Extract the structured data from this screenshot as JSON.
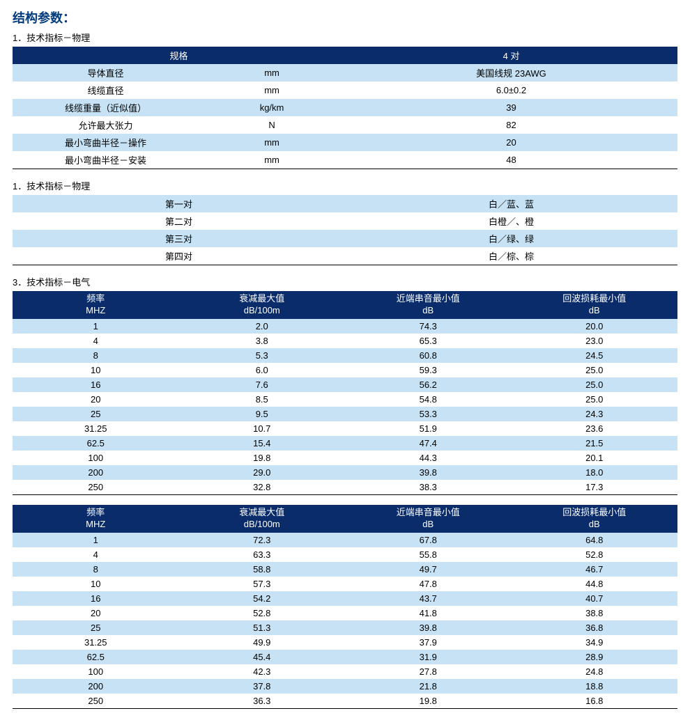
{
  "colors": {
    "header_bg": "#0a2c6b",
    "header_fg": "#ffffff",
    "stripe_blue": "#c6e2f4",
    "stripe_white": "#ffffff",
    "title": "#003b7e",
    "border": "#000000"
  },
  "page_title": "结构参数：",
  "section1": {
    "label": "1．技术指标－物理",
    "header": {
      "spec": "规格",
      "value": "4 对"
    },
    "rows": [
      {
        "spec": "导体直径",
        "unit": "mm",
        "value": "美国线规 23AWG"
      },
      {
        "spec": "线缆直径",
        "unit": "mm",
        "value": "6.0±0.2"
      },
      {
        "spec": "线缆重量（近似值）",
        "unit": "kg/km",
        "value": "39"
      },
      {
        "spec": "允许最大张力",
        "unit": "N",
        "value": "82"
      },
      {
        "spec": "最小弯曲半径－操作",
        "unit": "mm",
        "value": "20"
      },
      {
        "spec": "最小弯曲半径－安装",
        "unit": "mm",
        "value": "48"
      }
    ]
  },
  "section2": {
    "label": "1．技术指标－物理",
    "rows": [
      {
        "pair": "第一对",
        "color": "白／蓝、蓝"
      },
      {
        "pair": "第二对",
        "color": "白橙／、橙"
      },
      {
        "pair": "第三对",
        "color": "白／绿、绿"
      },
      {
        "pair": "第四对",
        "color": "白／棕、棕"
      }
    ]
  },
  "section3": {
    "label": "3．技术指标－电气",
    "header": {
      "c1a": "频率",
      "c1b": "MHZ",
      "c2a": "衰减最大值",
      "c2b": "dB/100m",
      "c3a": "近端串音最小值",
      "c3b": "dB",
      "c4a": "回波损耗最小值",
      "c4b": "dB"
    },
    "rows": [
      {
        "f": "1",
        "a": "2.0",
        "n": "74.3",
        "r": "20.0"
      },
      {
        "f": "4",
        "a": "3.8",
        "n": "65.3",
        "r": "23.0"
      },
      {
        "f": "8",
        "a": "5.3",
        "n": "60.8",
        "r": "24.5"
      },
      {
        "f": "10",
        "a": "6.0",
        "n": "59.3",
        "r": "25.0"
      },
      {
        "f": "16",
        "a": "7.6",
        "n": "56.2",
        "r": "25.0"
      },
      {
        "f": "20",
        "a": "8.5",
        "n": "54.8",
        "r": "25.0"
      },
      {
        "f": "25",
        "a": "9.5",
        "n": "53.3",
        "r": "24.3"
      },
      {
        "f": "31.25",
        "a": "10.7",
        "n": "51.9",
        "r": "23.6"
      },
      {
        "f": "62.5",
        "a": "15.4",
        "n": "47.4",
        "r": "21.5"
      },
      {
        "f": "100",
        "a": "19.8",
        "n": "44.3",
        "r": "20.1"
      },
      {
        "f": "200",
        "a": "29.0",
        "n": "39.8",
        "r": "18.0"
      },
      {
        "f": "250",
        "a": "32.8",
        "n": "38.3",
        "r": "17.3"
      }
    ]
  },
  "section4": {
    "header": {
      "c1a": "频率",
      "c1b": "MHZ",
      "c2a": "衰减最大值",
      "c2b": "dB/100m",
      "c3a": "近端串音最小值",
      "c3b": "dB",
      "c4a": "回波损耗最小值",
      "c4b": "dB"
    },
    "rows": [
      {
        "f": "1",
        "a": "72.3",
        "n": "67.8",
        "r": "64.8"
      },
      {
        "f": "4",
        "a": "63.3",
        "n": "55.8",
        "r": "52.8"
      },
      {
        "f": "8",
        "a": "58.8",
        "n": "49.7",
        "r": "46.7"
      },
      {
        "f": "10",
        "a": "57.3",
        "n": "47.8",
        "r": "44.8"
      },
      {
        "f": "16",
        "a": "54.2",
        "n": "43.7",
        "r": "40.7"
      },
      {
        "f": "20",
        "a": "52.8",
        "n": "41.8",
        "r": "38.8"
      },
      {
        "f": "25",
        "a": "51.3",
        "n": "39.8",
        "r": "36.8"
      },
      {
        "f": "31.25",
        "a": "49.9",
        "n": "37.9",
        "r": "34.9"
      },
      {
        "f": "62.5",
        "a": "45.4",
        "n": "31.9",
        "r": "28.9"
      },
      {
        "f": "100",
        "a": "42.3",
        "n": "27.8",
        "r": "24.8"
      },
      {
        "f": "200",
        "a": "37.8",
        "n": "21.8",
        "r": "18.8"
      },
      {
        "f": "250",
        "a": "36.3",
        "n": "19.8",
        "r": "16.8"
      }
    ]
  }
}
